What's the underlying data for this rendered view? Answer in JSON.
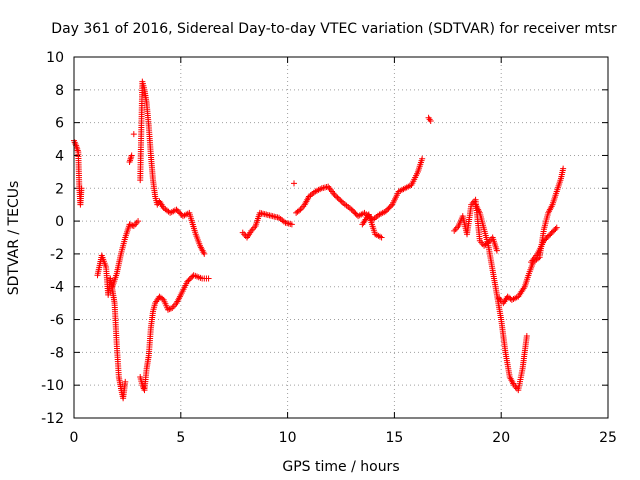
{
  "chart_data": {
    "type": "scatter",
    "title": "Day 361 of 2016, Sidereal Day-to-day VTEC variation (SDTVAR) for receiver mtsr",
    "xlabel": "GPS time / hours",
    "ylabel": "SDTVAR / TECUs",
    "xlim": [
      0,
      25
    ],
    "ylim": [
      -12,
      10
    ],
    "xticks": [
      0,
      5,
      10,
      15,
      20,
      25
    ],
    "yticks": [
      -12,
      -10,
      -8,
      -6,
      -4,
      -2,
      0,
      2,
      4,
      6,
      8,
      10
    ],
    "xtick_labels": [
      "0",
      "5",
      "10",
      "15",
      "20",
      "25"
    ],
    "ytick_labels": [
      "-12",
      "-10",
      "-8",
      "-6",
      "-4",
      "-2",
      "0",
      "2",
      "4",
      "6",
      "8",
      "10"
    ],
    "grid": true,
    "marker": "+",
    "color": "#ff0000",
    "series": [
      {
        "name": "t1",
        "x": [
          0.0,
          0.1,
          0.2,
          0.25,
          0.3,
          0.35
        ],
        "y": [
          4.9,
          4.6,
          4.2,
          2.0,
          1.0,
          2.0
        ]
      },
      {
        "name": "t2",
        "x": [
          1.1,
          1.3,
          1.5,
          1.6,
          1.7,
          1.8,
          1.9,
          2.0,
          2.1,
          2.2,
          2.3,
          2.4
        ],
        "y": [
          -3.3,
          -2.1,
          -2.8,
          -4.5,
          -3.5,
          -4.2,
          -5.0,
          -7.5,
          -9.5,
          -10.2,
          -10.8,
          -9.8
        ]
      },
      {
        "name": "t3",
        "x": [
          1.8,
          2.0,
          2.2,
          2.4,
          2.6,
          2.8,
          3.0
        ],
        "y": [
          -4.0,
          -3.2,
          -2.0,
          -1.0,
          -0.2,
          -0.3,
          0.0
        ]
      },
      {
        "name": "t4",
        "x": [
          2.6,
          2.7
        ],
        "y": [
          3.6,
          4.0
        ]
      },
      {
        "name": "t4b",
        "x": [
          2.8
        ],
        "y": [
          5.3
        ]
      },
      {
        "name": "t5",
        "x": [
          3.1,
          3.2,
          3.3,
          3.4,
          3.5,
          3.6,
          3.7,
          3.8,
          3.9,
          4.0,
          4.2,
          4.5,
          4.8,
          5.1,
          5.4,
          5.7,
          5.9,
          6.1
        ],
        "y": [
          2.5,
          8.5,
          8.0,
          7.2,
          5.8,
          4.0,
          2.5,
          1.5,
          1.0,
          1.2,
          0.8,
          0.5,
          0.7,
          0.3,
          0.5,
          -0.8,
          -1.5,
          -2.0
        ]
      },
      {
        "name": "t6",
        "x": [
          3.1,
          3.2,
          3.3,
          3.4,
          3.5,
          3.6,
          3.7,
          3.8,
          4.0,
          4.2,
          4.4,
          4.6,
          4.8,
          5.0,
          5.3,
          5.6,
          6.0,
          6.3
        ],
        "y": [
          -9.5,
          -10.0,
          -10.3,
          -9.0,
          -8.2,
          -6.5,
          -5.5,
          -5.0,
          -4.6,
          -4.8,
          -5.4,
          -5.3,
          -5.0,
          -4.5,
          -3.7,
          -3.3,
          -3.5,
          -3.5
        ]
      },
      {
        "name": "t7",
        "x": [
          7.9,
          8.1,
          8.3,
          8.5,
          8.7,
          9.0,
          9.3,
          9.6,
          9.9,
          10.2
        ],
        "y": [
          -0.7,
          -1.0,
          -0.6,
          -0.3,
          0.5,
          0.4,
          0.3,
          0.2,
          -0.1,
          -0.2
        ]
      },
      {
        "name": "t8",
        "x": [
          10.4,
          10.6,
          10.8,
          11.0,
          11.3,
          11.6,
          11.9,
          12.2,
          12.6,
          13.0,
          13.3,
          13.6,
          14.0,
          14.3,
          14.6,
          14.9,
          15.2,
          15.5,
          15.8,
          16.1,
          16.3
        ],
        "y": [
          0.5,
          0.7,
          1.0,
          1.5,
          1.8,
          2.0,
          2.1,
          1.6,
          1.1,
          0.7,
          0.3,
          0.5,
          0.1,
          0.4,
          0.6,
          1.0,
          1.8,
          2.0,
          2.2,
          3.0,
          3.8
        ]
      },
      {
        "name": "t8b",
        "x": [
          13.5,
          13.8,
          14.1,
          14.4
        ],
        "y": [
          -0.2,
          0.4,
          -0.8,
          -1.0
        ]
      },
      {
        "name": "t8c",
        "x": [
          10.3
        ],
        "y": [
          2.3
        ]
      },
      {
        "name": "t9",
        "x": [
          16.6,
          16.7
        ],
        "y": [
          6.3,
          6.1
        ]
      },
      {
        "name": "t10",
        "x": [
          17.8,
          18.0,
          18.2,
          18.4,
          18.6,
          18.8,
          19.0,
          19.2,
          19.4,
          19.6,
          19.8
        ],
        "y": [
          -0.6,
          -0.3,
          0.3,
          -0.8,
          1.0,
          1.3,
          -1.2,
          -1.5,
          -1.3,
          -1.0,
          -1.8
        ]
      },
      {
        "name": "t11",
        "x": [
          18.8,
          19.0,
          19.2,
          19.4,
          19.6,
          19.8,
          20.0,
          20.2,
          20.4,
          20.6,
          20.8,
          21.0,
          21.2
        ],
        "y": [
          1.0,
          0.5,
          -0.5,
          -1.5,
          -3.0,
          -4.5,
          -6.0,
          -8.0,
          -9.5,
          -10.0,
          -10.3,
          -9.0,
          -7.0
        ]
      },
      {
        "name": "t12",
        "x": [
          19.9,
          20.1,
          20.3,
          20.5,
          20.8,
          21.1,
          21.3,
          21.5,
          21.8,
          22.0,
          22.2,
          22.4,
          22.6,
          22.8,
          22.9
        ],
        "y": [
          -4.7,
          -5.0,
          -4.6,
          -4.8,
          -4.6,
          -4.0,
          -3.2,
          -2.5,
          -2.2,
          -0.5,
          0.5,
          1.0,
          1.8,
          2.6,
          3.2
        ]
      },
      {
        "name": "t12b",
        "x": [
          21.4,
          21.7,
          22.0,
          22.3,
          22.6
        ],
        "y": [
          -2.5,
          -2.0,
          -1.2,
          -0.8,
          -0.4
        ]
      }
    ]
  }
}
